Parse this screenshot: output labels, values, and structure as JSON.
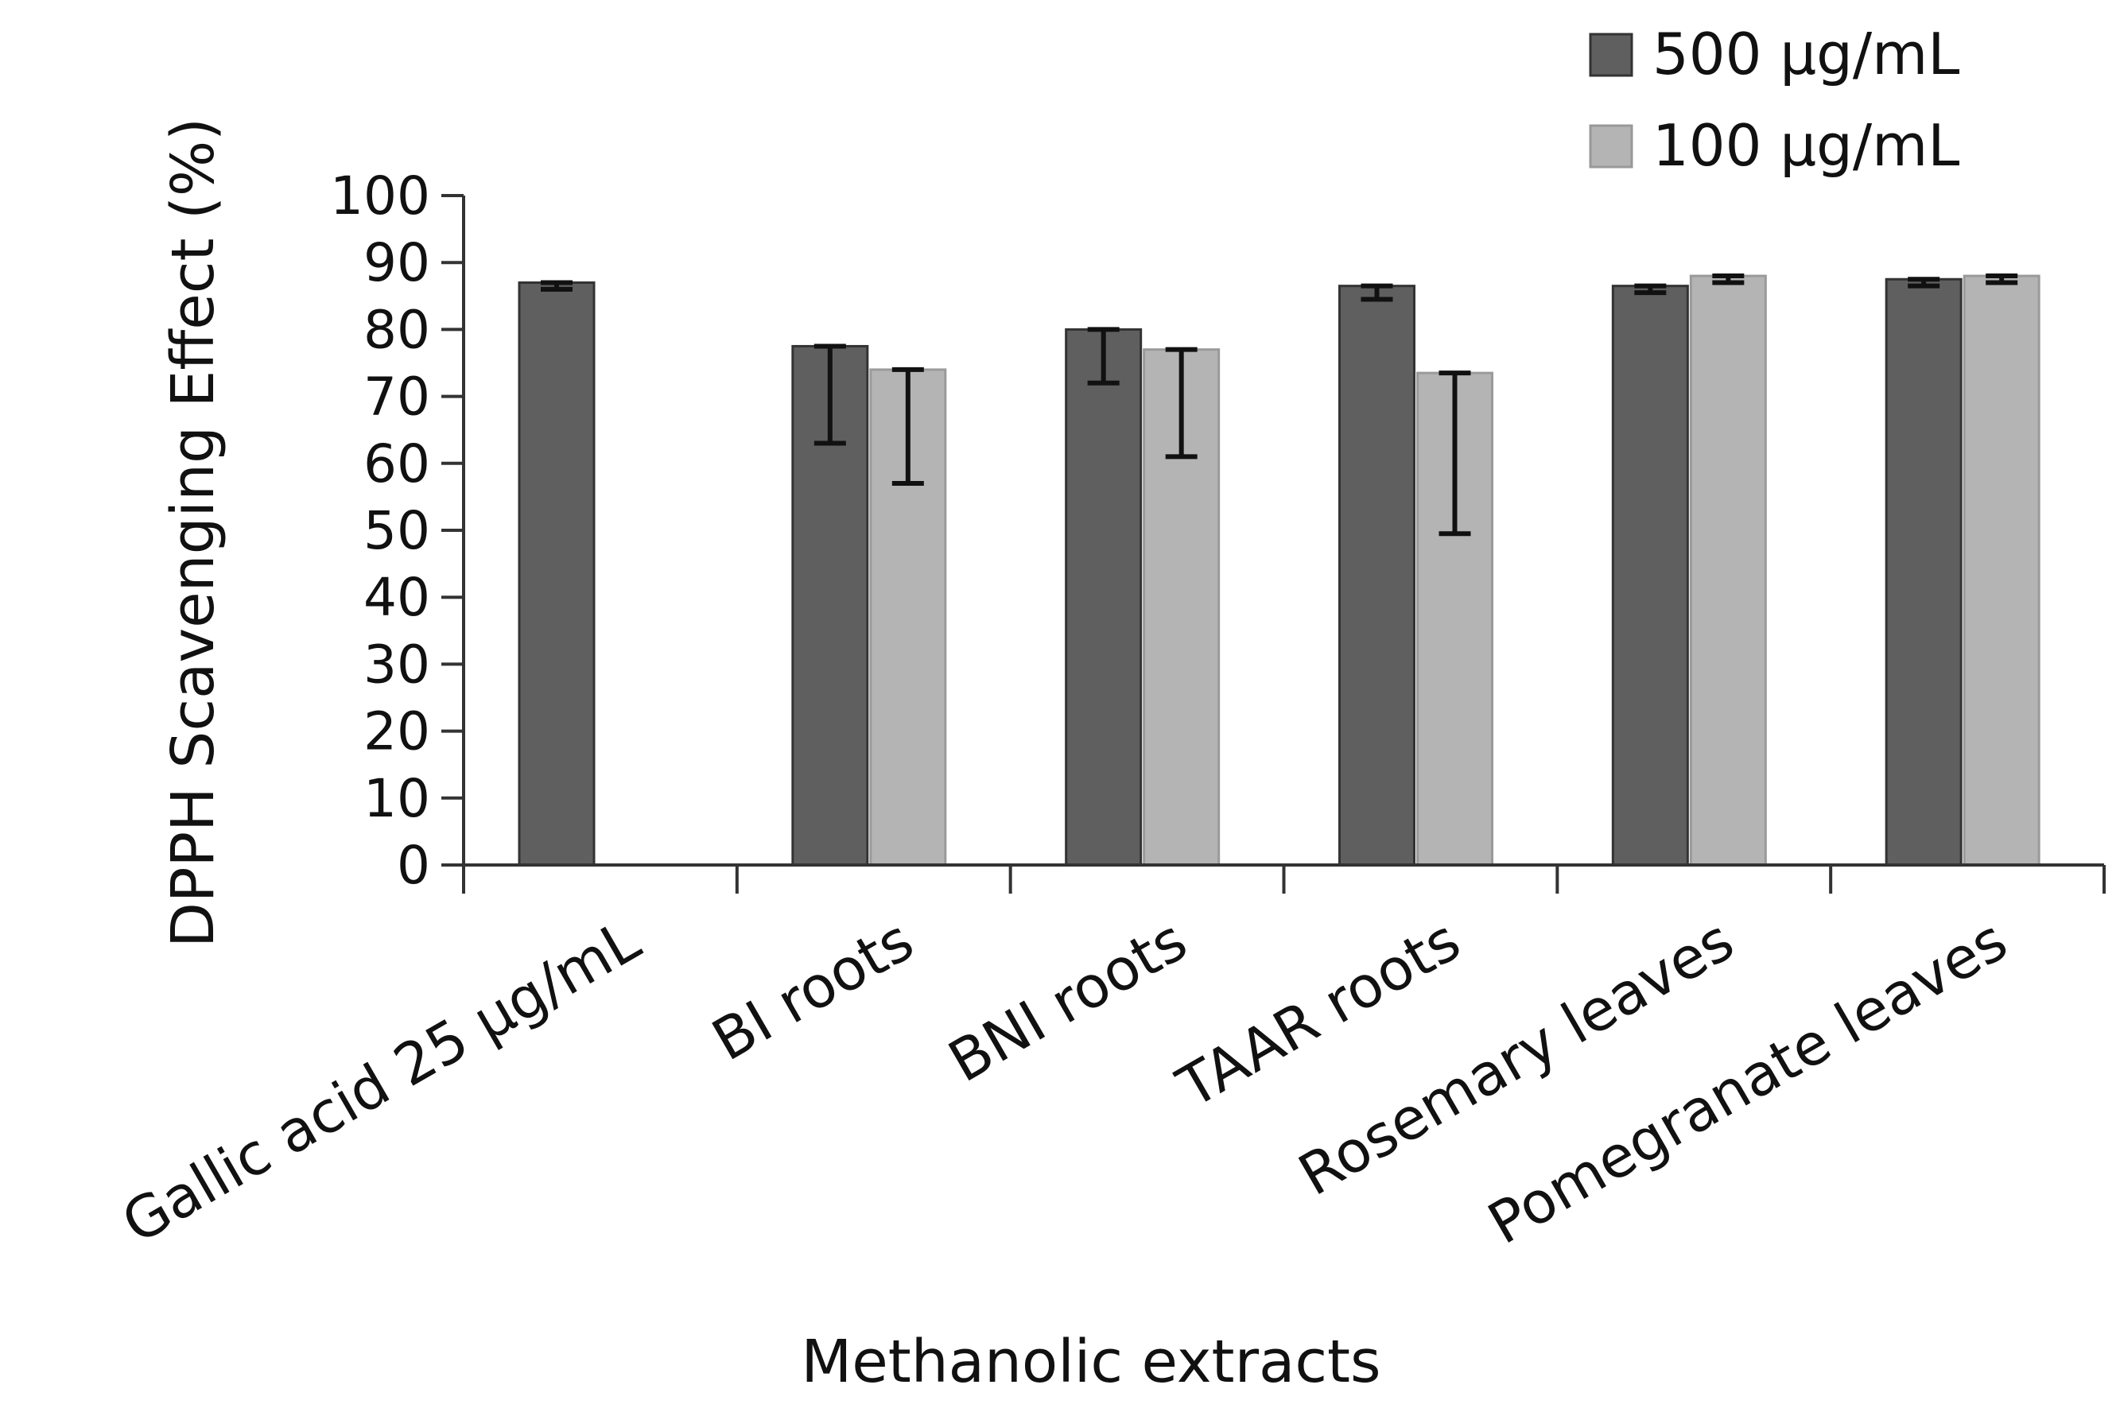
{
  "chart_data": {
    "type": "bar",
    "title": "",
    "xlabel": "Methanolic extracts",
    "ylabel": "DPPH Scavenging Effect (%)",
    "ylim": [
      0,
      100
    ],
    "yticks": [
      0,
      10,
      20,
      30,
      40,
      50,
      60,
      70,
      80,
      90,
      100
    ],
    "yticks_text": [
      "0",
      "10",
      "20",
      "30",
      "40",
      "50",
      "60",
      "70",
      "80",
      "90",
      "100"
    ],
    "grid": false,
    "legend_position": "top-right",
    "categories": [
      "Gallic acid 25 µg/mL",
      "BI roots",
      "BNI roots",
      "TAAR roots",
      "Rosemary leaves",
      "Pomegranate leaves"
    ],
    "series": [
      {
        "name": "500 µg/mL",
        "color": "#5f5f5f",
        "values": [
          87,
          77.5,
          80,
          86.5,
          86.5,
          87.5
        ],
        "error_low": [
          86,
          63,
          72,
          84.5,
          85.5,
          86.5
        ]
      },
      {
        "name": "100 µg/mL",
        "color": "#b4b4b4",
        "values": [
          null,
          74,
          77,
          73.5,
          88,
          88
        ],
        "error_low": [
          null,
          57,
          61,
          49.5,
          87,
          87
        ]
      }
    ]
  }
}
